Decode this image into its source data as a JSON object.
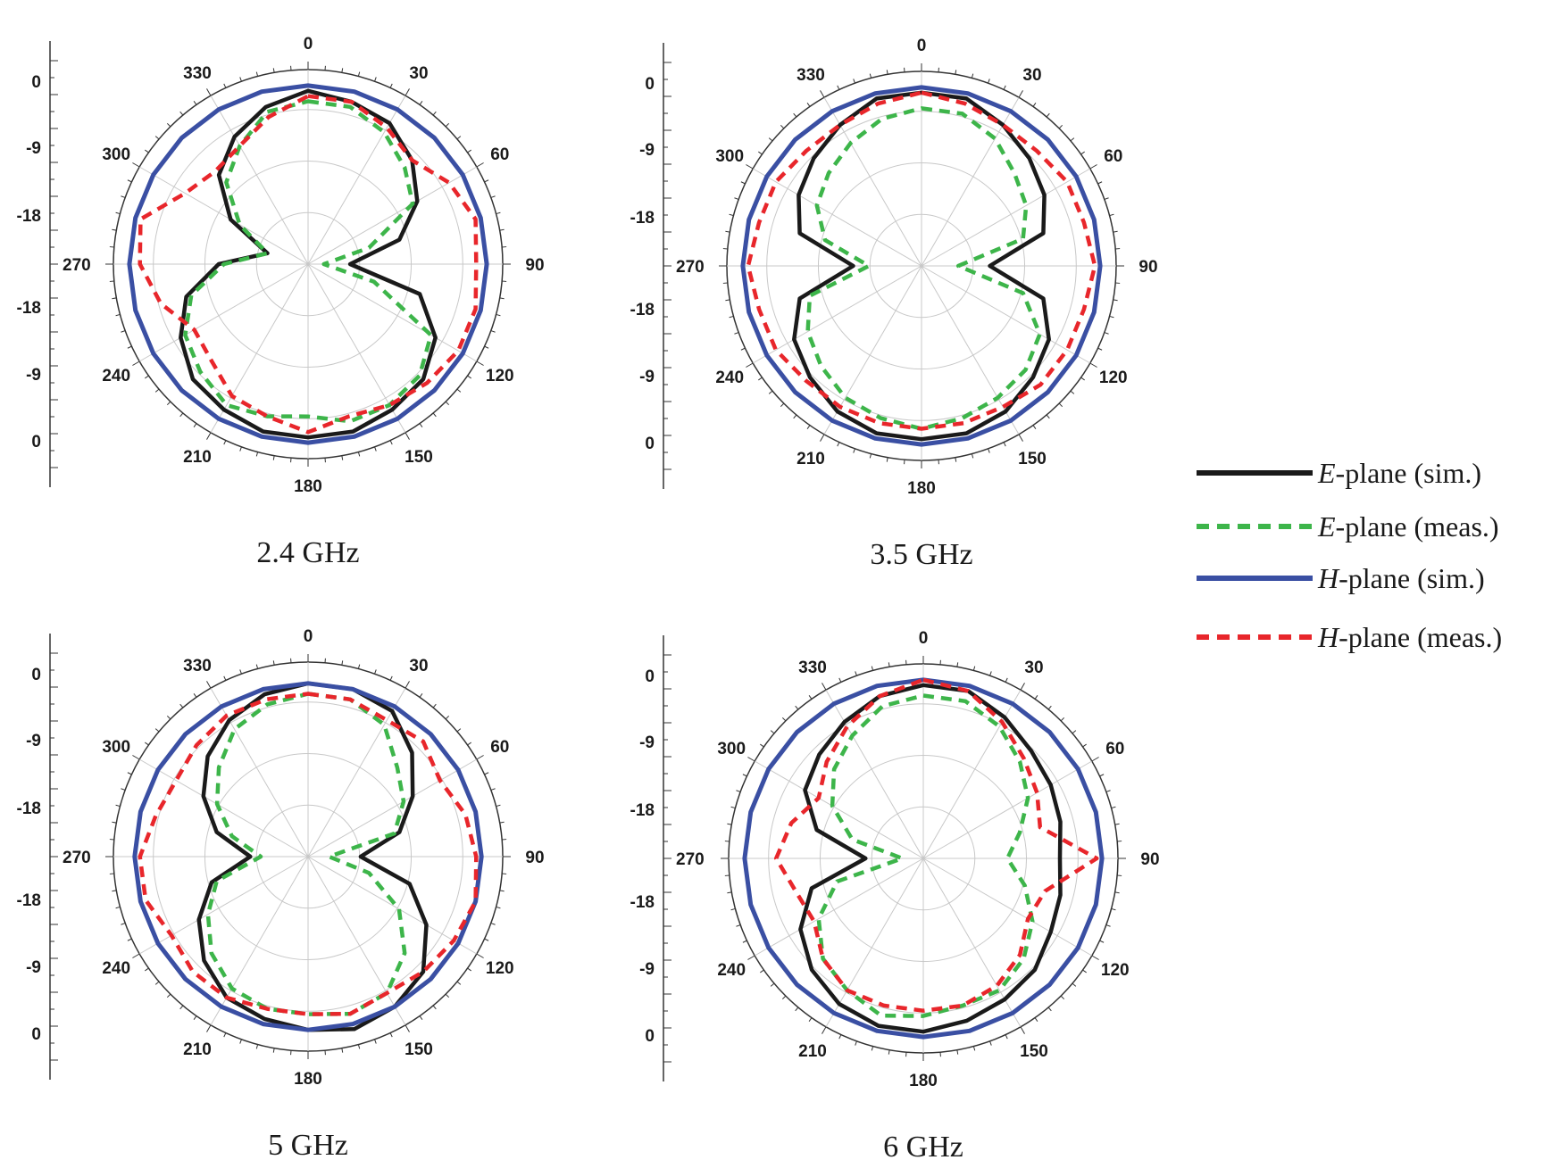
{
  "colors": {
    "e_sim": "#1a1a1a",
    "e_meas": "#3db54a",
    "h_sim": "#3a4fa3",
    "h_meas": "#e8262b",
    "grid": "#c8c8c8",
    "axis": "#333333"
  },
  "legend": {
    "placement": "right",
    "entries": [
      {
        "key": "e_sim",
        "italic": "E",
        "rest": "-plane (sim.)"
      },
      {
        "key": "e_meas",
        "italic": "E",
        "rest": "-plane (meas.)"
      },
      {
        "key": "h_sim",
        "italic": "H",
        "rest": "-plane (sim.)"
      },
      {
        "key": "h_meas",
        "italic": "H",
        "rest": "-plane (meas.)"
      }
    ]
  },
  "chart_data": [
    {
      "type": "polar-line",
      "title": "2.4 GHz",
      "angle_labels": [
        "0",
        "30",
        "60",
        "90",
        "120",
        "150",
        "180",
        "210",
        "240",
        "270",
        "300",
        "330"
      ],
      "radial_labels_top": [
        "0",
        "-9",
        "-18"
      ],
      "radial_labels_bottom": [
        "-18",
        "-9",
        "0"
      ],
      "angle_label_270": "270",
      "rlim": [
        -30,
        5
      ],
      "theta_step_deg": 15,
      "series": [
        {
          "key": "e_sim",
          "r": [
            3,
            2,
            1,
            -2,
            -6,
            -12,
            -22,
            -8,
            -2,
            1,
            2,
            3,
            3,
            3,
            2,
            1,
            -2,
            -6,
            -13,
            -22,
            -13,
            -6,
            -2,
            1
          ]
        },
        {
          "key": "e_meas",
          "r": [
            1,
            1,
            -1,
            -4,
            -7,
            -18,
            -27,
            -17,
            -3,
            0,
            1,
            1,
            -1,
            0,
            1,
            -1,
            -3,
            -7,
            -14,
            -22,
            -15,
            -8,
            -4,
            0
          ]
        },
        {
          "key": "h_sim",
          "r": [
            4,
            4,
            4,
            4,
            4,
            4,
            4,
            4,
            4,
            4,
            4,
            4,
            4,
            4,
            4,
            4,
            4,
            4,
            4,
            4,
            4,
            4,
            4,
            4
          ]
        },
        {
          "key": "h_meas",
          "r": [
            2,
            2,
            0,
            -2,
            1,
            3,
            2,
            3,
            3,
            2,
            1,
            0,
            2,
            0,
            -1,
            -4,
            -5,
            -1,
            2,
            3,
            -3,
            -5,
            -4,
            -1
          ]
        }
      ]
    },
    {
      "type": "polar-line",
      "title": "3.5 GHz",
      "angle_labels": [
        "0",
        "30",
        "60",
        "90",
        "120",
        "150",
        "180",
        "210",
        "240",
        "270",
        "300",
        "330"
      ],
      "radial_labels_top": [
        "0",
        "-9",
        "-18"
      ],
      "radial_labels_bottom": [
        "-18",
        "-9",
        "0"
      ],
      "angle_label_270": "270",
      "rlim": [
        -30,
        5
      ],
      "theta_step_deg": 15,
      "series": [
        {
          "key": "e_sim",
          "r": [
            3,
            3,
            1,
            -1,
            -3,
            -6,
            -17,
            -6,
            -2,
            0,
            2,
            3,
            3,
            3,
            2,
            0,
            -2,
            -6,
            -17,
            -6,
            -3,
            -1,
            1,
            3
          ]
        },
        {
          "key": "e_meas",
          "r": [
            0,
            0,
            -2,
            -5,
            -7,
            -10,
            -23,
            -10,
            -4,
            -2,
            -1,
            0,
            1,
            0,
            -1,
            -3,
            -5,
            -8,
            -20,
            -11,
            -7,
            -5,
            -3,
            -1
          ]
        },
        {
          "key": "h_sim",
          "r": [
            4,
            4,
            4,
            4,
            4,
            4,
            4,
            4,
            4,
            4,
            4,
            4,
            4,
            4,
            4,
            4,
            4,
            4,
            4,
            4,
            4,
            4,
            4,
            4
          ]
        },
        {
          "key": "h_meas",
          "r": [
            3,
            2,
            1,
            1,
            2,
            2,
            3,
            2,
            2,
            2,
            1,
            1,
            1,
            1,
            1,
            1,
            2,
            2,
            3,
            2,
            2,
            1,
            1,
            2
          ]
        }
      ]
    },
    {
      "type": "polar-line",
      "title": "5 GHz",
      "angle_labels": [
        "0",
        "30",
        "60",
        "90",
        "120",
        "150",
        "180",
        "210",
        "240",
        "270",
        "300",
        "330"
      ],
      "radial_labels_top": [
        "0",
        "-9",
        "-18"
      ],
      "radial_labels_bottom": [
        "-18",
        "-9",
        "0"
      ],
      "angle_label_270": "270",
      "rlim": [
        -30,
        5
      ],
      "theta_step_deg": 15,
      "series": [
        {
          "key": "e_sim",
          "r": [
            3,
            3,
            2,
            -2,
            -7,
            -12,
            -20,
            -10,
            -4,
            1,
            3,
            4,
            3,
            2,
            1,
            -2,
            -6,
            -11,
            -19,
            -12,
            -7,
            -3,
            0,
            2
          ]
        },
        {
          "key": "e_meas",
          "r": [
            1,
            1,
            -1,
            -6,
            -9,
            -13,
            -26,
            -18,
            -10,
            -4,
            0,
            1,
            0,
            0,
            -1,
            -4,
            -8,
            -12,
            -21,
            -15,
            -10,
            -6,
            -2,
            0
          ]
        },
        {
          "key": "h_sim",
          "r": [
            3,
            3,
            3,
            3,
            3,
            3,
            3,
            3,
            3,
            3,
            3,
            3,
            3,
            3,
            3,
            3,
            3,
            3,
            3,
            3,
            3,
            3,
            3,
            3
          ]
        },
        {
          "key": "h_meas",
          "r": [
            1,
            1,
            0,
            1,
            -1,
            1,
            2,
            3,
            2,
            1,
            0,
            1,
            0,
            0,
            1,
            1,
            0,
            2,
            2,
            0,
            -1,
            0,
            1,
            1
          ]
        }
      ]
    },
    {
      "type": "polar-line",
      "title": "6 GHz",
      "angle_labels": [
        "0",
        "30",
        "60",
        "90",
        "120",
        "150",
        "180",
        "210",
        "240",
        "270",
        "300",
        "330"
      ],
      "radial_labels_top": [
        "0",
        "-9",
        "-18"
      ],
      "radial_labels_bottom": [
        "-18",
        "-9",
        "0"
      ],
      "angle_label_270": "270",
      "rlim": [
        -30,
        5
      ],
      "theta_step_deg": 15,
      "series": [
        {
          "key": "e_sim",
          "r": [
            3,
            3,
            1,
            -1,
            -2,
            -3,
            -4,
            -3,
            -2,
            0,
            1,
            2,
            3,
            3,
            2,
            0,
            -3,
            -8,
            -19,
            -9,
            -4,
            -2,
            0,
            2
          ]
        },
        {
          "key": "e_meas",
          "r": [
            1,
            1,
            -1,
            -4,
            -7,
            -11,
            -14,
            -10,
            -6,
            -3,
            -1,
            -1,
            0,
            1,
            -1,
            -3,
            -7,
            -13,
            -26,
            -16,
            -10,
            -6,
            -3,
            0
          ]
        },
        {
          "key": "h_sim",
          "r": [
            4,
            4,
            4,
            4,
            4,
            4,
            4,
            4,
            4,
            4,
            4,
            4,
            4,
            4,
            4,
            4,
            4,
            4,
            4,
            4,
            4,
            4,
            4,
            4
          ]
        },
        {
          "key": "h_meas",
          "r": [
            4,
            3,
            0,
            -3,
            -5,
            -7,
            3,
            -6,
            -7,
            -4,
            -2,
            -1,
            -1,
            -1,
            -1,
            -3,
            -6,
            -5,
            -2,
            -4,
            -7,
            -4,
            -1,
            2
          ]
        }
      ]
    }
  ]
}
